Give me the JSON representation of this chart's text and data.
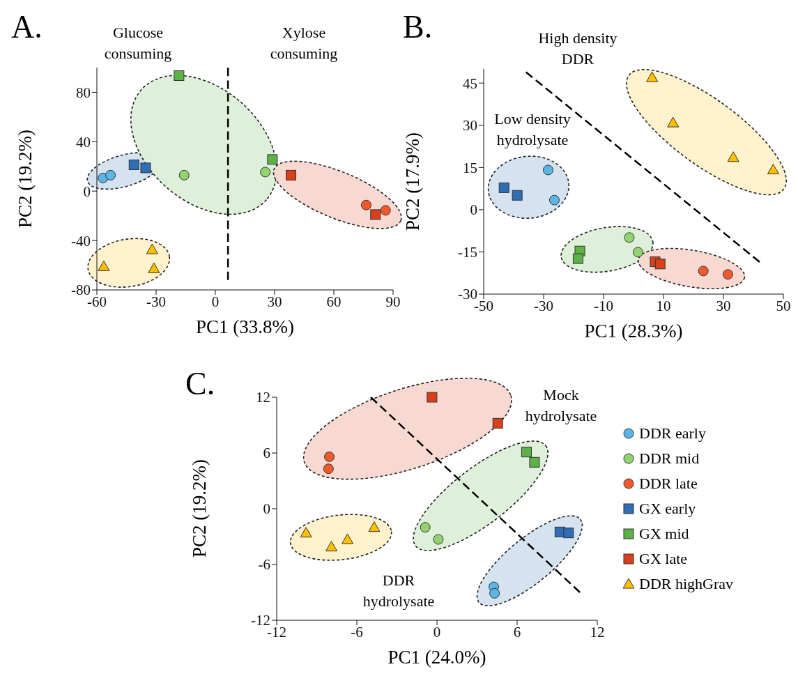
{
  "chart_data": [
    {
      "type": "scatter",
      "title": "A.",
      "xlabel": "PC1 (33.8%)",
      "ylabel": "PC2 (19.2%)",
      "xlim": [
        -60,
        90
      ],
      "ylim": [
        -80,
        100
      ],
      "xticks": [
        -60,
        -30,
        0,
        30,
        60,
        90
      ],
      "yticks": [
        -80,
        -40,
        0,
        40,
        80
      ],
      "annotations": [
        "Glucose consuming",
        "Xylose consuming"
      ],
      "series": [
        {
          "color": "#5bb5e6",
          "marker": "circle",
          "x": [
            -56.9,
            -53.1
          ],
          "values": [
            10.6,
            12.9
          ]
        },
        {
          "color": "#92d36e",
          "marker": "circle",
          "x": [
            -15.8,
            25.3
          ],
          "values": [
            12.9,
            15.4
          ]
        },
        {
          "color": "#f0592b",
          "marker": "circle",
          "x": [
            76.4,
            86.2
          ],
          "values": [
            -11.3,
            -15.6
          ]
        },
        {
          "color": "#2f6eb5",
          "marker": "square",
          "x": [
            -41.2,
            -35.3
          ],
          "values": [
            21.3,
            18.8
          ]
        },
        {
          "color": "#5cb246",
          "marker": "square",
          "x": [
            -18.4,
            28.9
          ],
          "values": [
            93.5,
            25.6
          ]
        },
        {
          "color": "#d8401a",
          "marker": "square",
          "x": [
            38.3,
            81.1
          ],
          "values": [
            12.9,
            -19.0
          ]
        },
        {
          "color": "#ffc000",
          "marker": "triangle",
          "x": [
            -56.5,
            -32.0,
            -31.1
          ],
          "values": [
            -61.0,
            -47.3,
            -62.7
          ]
        },
        {
          "type": "line",
          "color": "#000000",
          "line_style": "dashed",
          "marker": "none",
          "x": [
            6.4,
            6.4
          ],
          "values": [
            -72,
            100
          ]
        }
      ]
    },
    {
      "type": "scatter",
      "title": "B.",
      "xlabel": "PC1 (28.3%)",
      "ylabel": "PC2 (17.9%)",
      "xlim": [
        -50,
        50
      ],
      "ylim": [
        -30,
        50
      ],
      "xticks": [
        -50,
        -30,
        -10,
        10,
        30,
        50
      ],
      "yticks": [
        -30,
        -15,
        0,
        15,
        30,
        45
      ],
      "annotations": [
        "High density DDR",
        "Low density hydrolysate"
      ],
      "series": [
        {
          "color": "#5bb5e6",
          "marker": "circle",
          "x": [
            -28.5,
            -26.4
          ],
          "values": [
            14.1,
            3.4
          ]
        },
        {
          "color": "#92d36e",
          "marker": "circle",
          "x": [
            -1.4,
            1.5
          ],
          "values": [
            -9.9,
            -15.1
          ]
        },
        {
          "color": "#f0592b",
          "marker": "circle",
          "x": [
            23.3,
            31.5
          ],
          "values": [
            -21.8,
            -23.0
          ]
        },
        {
          "color": "#2f6eb5",
          "marker": "square",
          "x": [
            -43.2,
            -38.8
          ],
          "values": [
            7.8,
            5.1
          ]
        },
        {
          "color": "#5cb246",
          "marker": "square",
          "x": [
            -17.9,
            -18.5
          ],
          "values": [
            -14.7,
            -17.4
          ]
        },
        {
          "color": "#d8401a",
          "marker": "square",
          "x": [
            7.2,
            8.9
          ],
          "values": [
            -18.5,
            -19.3
          ]
        },
        {
          "color": "#ffc000",
          "marker": "triangle",
          "x": [
            6.2,
            13.2,
            33.3,
            46.6
          ],
          "values": [
            47.0,
            30.9,
            18.6,
            14.2
          ]
        },
        {
          "type": "line",
          "color": "#000000",
          "line_style": "dashed",
          "marker": "none",
          "x": [
            -35.9,
            42.1
          ],
          "values": [
            48.9,
            -18.6
          ]
        }
      ]
    },
    {
      "type": "scatter",
      "title": "C.",
      "xlabel": "PC1 (24.0%)",
      "ylabel": "PC2 (19.2%)",
      "xlim": [
        -12,
        12
      ],
      "ylim": [
        -12,
        12
      ],
      "xticks": [
        -12,
        -6,
        0,
        6,
        12
      ],
      "yticks": [
        -12,
        -6,
        0,
        6,
        12
      ],
      "legend": "right",
      "annotations": [
        "Mock hydrolysate",
        "DDR hydrolysate"
      ],
      "series": [
        {
          "name": "DDR early",
          "color": "#5bb5e6",
          "marker": "circle",
          "x": [
            4.25,
            4.31
          ],
          "values": [
            -8.4,
            -9.1
          ]
        },
        {
          "name": "DDR mid",
          "color": "#92d36e",
          "marker": "circle",
          "x": [
            -0.88,
            0.1
          ],
          "values": [
            -2.0,
            -3.3
          ]
        },
        {
          "name": "DDR late",
          "color": "#f0592b",
          "marker": "circle",
          "x": [
            -8.06,
            -8.12
          ],
          "values": [
            5.6,
            4.3
          ]
        },
        {
          "name": "GX early",
          "color": "#2f6eb5",
          "marker": "square",
          "x": [
            9.2,
            9.85
          ],
          "values": [
            -2.5,
            -2.6
          ]
        },
        {
          "name": "GX mid",
          "color": "#5cb246",
          "marker": "square",
          "x": [
            6.7,
            7.3
          ],
          "values": [
            6.1,
            5.0
          ]
        },
        {
          "name": "GX late",
          "color": "#d8401a",
          "marker": "square",
          "x": [
            -0.37,
            4.55
          ],
          "values": [
            12.0,
            9.2
          ]
        },
        {
          "name": "DDR highGrav",
          "color": "#ffc000",
          "marker": "triangle",
          "x": [
            -9.8,
            -7.9,
            -6.7,
            -4.7
          ],
          "values": [
            -2.6,
            -4.1,
            -3.3,
            -2.0
          ]
        },
        {
          "type": "line",
          "color": "#000000",
          "line_style": "dashed",
          "marker": "none",
          "x": [
            -4.95,
            10.7
          ],
          "values": [
            12,
            -9.0
          ]
        }
      ]
    }
  ]
}
